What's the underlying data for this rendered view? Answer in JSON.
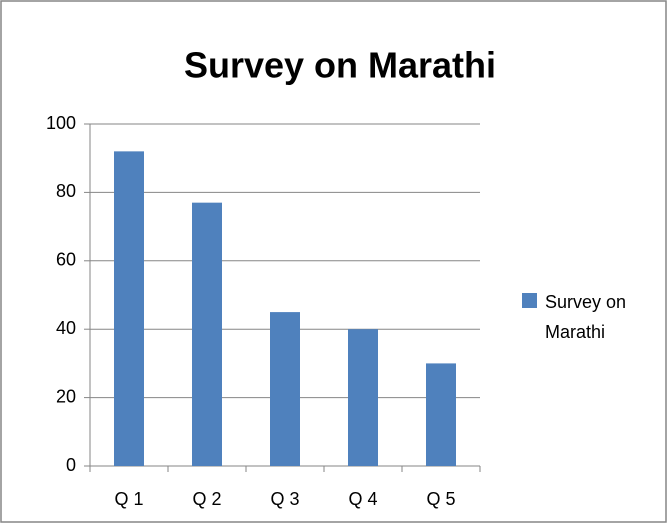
{
  "chart_data": {
    "type": "bar",
    "title": "Survey on Marathi",
    "categories": [
      "Q 1",
      "Q 2",
      "Q 3",
      "Q 4",
      "Q 5"
    ],
    "series": [
      {
        "name": "Survey on Marathi",
        "color": "#4f81bd",
        "values": [
          92,
          77,
          45,
          40,
          30
        ]
      }
    ],
    "ylim": [
      0,
      100
    ],
    "yticks": [
      0,
      20,
      40,
      60,
      80,
      100
    ],
    "grid": true,
    "legend": "right"
  }
}
